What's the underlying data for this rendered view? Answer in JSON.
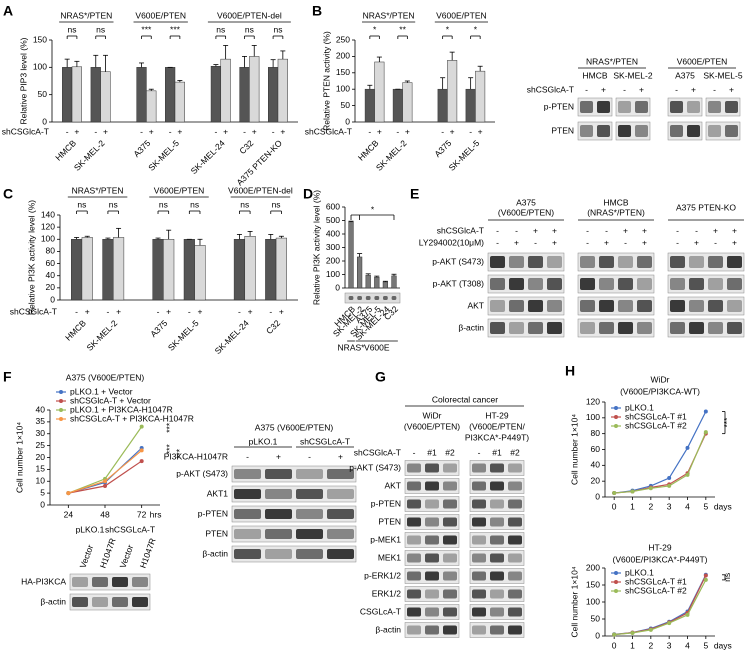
{
  "panels": [
    "A",
    "B",
    "C",
    "D",
    "E",
    "F",
    "G",
    "H"
  ],
  "chart_data": [
    {
      "type": "bar",
      "panel_groups": [
        "NRAS*/PTEN",
        "V600E/PTEN",
        "V600E/PTEN-del"
      ],
      "ylabel": "Relative PIP3 level (%)",
      "ylim": [
        0,
        150
      ],
      "yticks": [
        0,
        50,
        100,
        150
      ],
      "categories": [
        "HMCB",
        "SK-MEL-2",
        "A375",
        "SK-MEL-5",
        "SK-MEL-24",
        "C32",
        "A375 PTEN-KO"
      ],
      "row_label": "shCSGlcA-T",
      "series": [
        {
          "name": "-",
          "color": "#555555",
          "values": [
            100,
            100,
            100,
            100,
            102,
            100,
            100
          ],
          "errors": [
            15,
            22,
            8,
            0,
            3,
            20,
            14
          ]
        },
        {
          "name": "+",
          "color": "#d9d9d9",
          "values": [
            101,
            92,
            57,
            73,
            115,
            120,
            115
          ],
          "errors": [
            10,
            30,
            3,
            3,
            25,
            20,
            15
          ]
        }
      ],
      "significance": [
        "ns",
        "ns",
        "***",
        "***",
        "ns",
        "ns",
        "ns"
      ]
    },
    {
      "type": "bar",
      "panel_groups": [
        "NRAS*/PTEN",
        "V600E/PTEN"
      ],
      "ylabel": "Relative PTEN activity (%)",
      "ylim": [
        0,
        250
      ],
      "yticks": [
        0,
        50,
        100,
        150,
        200,
        250
      ],
      "categories": [
        "HMCB",
        "SK-MEL-2",
        "A375",
        "SK-MEL-5"
      ],
      "row_label": "shCSGlcA-T",
      "series": [
        {
          "name": "-",
          "color": "#555555",
          "values": [
            100,
            100,
            100,
            100
          ],
          "errors": [
            12,
            0,
            35,
            35
          ]
        },
        {
          "name": "+",
          "color": "#d9d9d9",
          "values": [
            183,
            120,
            188,
            155
          ],
          "errors": [
            15,
            5,
            25,
            15
          ]
        }
      ],
      "significance": [
        "*",
        "**",
        "*",
        "*"
      ]
    },
    {
      "type": "bar",
      "panel_groups": [
        "NRAS*/PTEN",
        "V600E/PTEN",
        "V600E/PTEN-del"
      ],
      "ylabel": "Relative PI3K activity level (%)",
      "ylim": [
        0,
        140
      ],
      "yticks": [
        0,
        20,
        40,
        60,
        80,
        100,
        120,
        140
      ],
      "categories": [
        "HMCB",
        "SK-MEL-2",
        "A375",
        "SK-MEL-5",
        "SK-MEL-24",
        "C32"
      ],
      "row_label": "shCSGlcA-T",
      "series": [
        {
          "name": "-",
          "color": "#555555",
          "values": [
            100,
            100,
            100,
            100,
            100,
            100
          ],
          "errors": [
            3,
            2,
            2,
            0,
            8,
            8
          ]
        },
        {
          "name": "+",
          "color": "#d9d9d9",
          "values": [
            103,
            103,
            100,
            90,
            105,
            102
          ],
          "errors": [
            2,
            15,
            15,
            10,
            8,
            3
          ]
        }
      ],
      "significance": [
        "ns",
        "ns",
        "ns",
        "ns",
        "ns",
        "ns"
      ]
    },
    {
      "type": "bar",
      "panel_groups": [
        "NRAS*",
        "V600E"
      ],
      "ylabel": "Relative PI3K activity level (%)",
      "ylim": [
        0,
        600
      ],
      "yticks": [
        0,
        100,
        200,
        300,
        400,
        500,
        600
      ],
      "categories": [
        "HMCB",
        "SK-MEL-2",
        "A375",
        "SK-MEL-5",
        "SK-MEL-24",
        "C32"
      ],
      "color": "#777777",
      "values": [
        490,
        230,
        95,
        80,
        45,
        90
      ],
      "errors": [
        5,
        25,
        10,
        8,
        5,
        12
      ],
      "significance": [
        "*"
      ]
    },
    {
      "type": "line",
      "title": "A375 (V600E/PTEN)",
      "ylabel": "Cell number 1×10⁴",
      "x": [
        24,
        48,
        72
      ],
      "xlim": [
        12,
        84
      ],
      "xticks": [
        24,
        48,
        72
      ],
      "xunit": "hrs",
      "ylim": [
        0,
        40
      ],
      "yticks": [
        0,
        5,
        10,
        15,
        20,
        25,
        30,
        35,
        40
      ],
      "legend": "top-left",
      "series": [
        {
          "name": "pLKO.1 + Vector",
          "color": "#4472c4",
          "values": [
            5,
            9.5,
            24
          ]
        },
        {
          "name": "shCSGlcA-T + Vector",
          "color": "#c0504d",
          "values": [
            5,
            8,
            18.5
          ]
        },
        {
          "name": "pLKO.1 + PI3KCA-H1047R",
          "color": "#9bbb59",
          "values": [
            5,
            11,
            33
          ]
        },
        {
          "name": "shCSGLcA-T + PI3KCA-H1047R",
          "color": "#f79646",
          "values": [
            5,
            10,
            23
          ]
        }
      ],
      "annotations": [
        "***",
        "***",
        "***"
      ]
    },
    {
      "type": "line",
      "title": [
        "WiDr",
        "(V600E/PI3KCA-WT)"
      ],
      "ylabel": "Cell number 1×10⁴",
      "x": [
        0,
        1,
        2,
        3,
        4,
        5
      ],
      "xlim": [
        -0.5,
        5.5
      ],
      "xticks": [
        0,
        1,
        2,
        3,
        4,
        5
      ],
      "xunit": "days",
      "ylim": [
        0,
        120
      ],
      "yticks": [
        0,
        20,
        40,
        60,
        80,
        100,
        120
      ],
      "legend": "top-left",
      "series": [
        {
          "name": "pLKO.1",
          "color": "#4472c4",
          "values": [
            5,
            8,
            14,
            24,
            62,
            108
          ]
        },
        {
          "name": "shCSGLcA-T #1",
          "color": "#c0504d",
          "values": [
            5,
            7,
            12,
            16,
            30,
            80
          ]
        },
        {
          "name": "shCSGLcA-T #2",
          "color": "#9bbb59",
          "values": [
            5,
            7,
            11,
            14,
            28,
            82
          ]
        }
      ],
      "annotations": [
        "***"
      ]
    },
    {
      "type": "line",
      "title": [
        "HT-29",
        "(V600E/PI3KCA*-P449T)"
      ],
      "ylabel": "Cell number 1×10⁴",
      "x": [
        0,
        1,
        2,
        3,
        4,
        5
      ],
      "xlim": [
        -0.5,
        5.5
      ],
      "xticks": [
        0,
        1,
        2,
        3,
        4,
        5
      ],
      "xunit": "days",
      "ylim": [
        0,
        200
      ],
      "yticks": [
        0,
        50,
        100,
        150,
        200
      ],
      "legend": "top-left",
      "series": [
        {
          "name": "pLKO.1",
          "color": "#4472c4",
          "values": [
            5,
            10,
            22,
            42,
            72,
            180
          ]
        },
        {
          "name": "shCSGLcA-T #1",
          "color": "#c0504d",
          "values": [
            4,
            10,
            20,
            40,
            68,
            178
          ]
        },
        {
          "name": "shCSGLcA-T #2",
          "color": "#9bbb59",
          "values": [
            4,
            9,
            18,
            38,
            62,
            165
          ]
        }
      ],
      "annotations": [
        "ns"
      ]
    }
  ],
  "blots": [
    {
      "groups": [
        {
          "title": "NRAS*/PTEN",
          "cells": [
            "HMCB",
            "SK-MEL-2"
          ]
        },
        {
          "title": "V600E/PTEN",
          "cells": [
            "A375",
            "SK-MEL-5"
          ]
        }
      ],
      "treatment": "shCSGlcA-T",
      "lanes": [
        "-",
        "+"
      ],
      "rows": [
        "p-PTEN",
        "PTEN"
      ]
    },
    {
      "groups": [
        {
          "title": [
            "A375",
            "(V600E/PTEN)"
          ]
        },
        {
          "title": [
            "HMCB",
            "(NRAS*/PTEN)"
          ]
        },
        {
          "title": [
            "A375 PTEN-KO"
          ]
        }
      ],
      "treatments": [
        {
          "name": "shCSGlcA-T",
          "lanes": [
            "-",
            "-",
            "+",
            "+"
          ]
        },
        {
          "name": "LY294002(10μM)",
          "lanes": [
            "-",
            "+",
            "-",
            "+"
          ]
        }
      ],
      "rows": [
        "p-AKT (S473)",
        "p-AKT (T308)",
        "AKT",
        "β-actin"
      ]
    },
    {
      "groups": [
        "pLKO.1",
        "shCSGLcA-T"
      ],
      "lanes": [
        "Vector",
        "H1047R",
        "Vector",
        "H1047R"
      ],
      "rows": [
        "HA-PI3KCA",
        "β-actin"
      ]
    },
    {
      "title": "A375 (V600E/PTEN)",
      "groups": [
        "pLKO.1",
        "shCSGLcA-T"
      ],
      "treatment": "PI3KCA-H1047R",
      "lanes": [
        "-",
        "+",
        "-",
        "+"
      ],
      "rows": [
        "p-AKT (S473)",
        "AKT1",
        "p-PTEN",
        "PTEN",
        "β-actin"
      ]
    },
    {
      "header": "Colorectal cancer",
      "groups": [
        {
          "title": [
            "WiDr",
            "(V600E/PTEN)"
          ]
        },
        {
          "title": [
            "HT-29",
            "(V600E/PTEN/",
            "PI3KCA*-P449T)"
          ]
        }
      ],
      "treatment": "shCSGlcA-T",
      "lanes": [
        "-",
        "#1",
        "#2"
      ],
      "rows": [
        "p-AKT (S473)",
        "AKT",
        "p-PTEN",
        "PTEN",
        "p-MEK1",
        "MEK1",
        "p-ERK1/2",
        "ERK1/2",
        "CSGLcA-T",
        "β-actin"
      ]
    }
  ]
}
